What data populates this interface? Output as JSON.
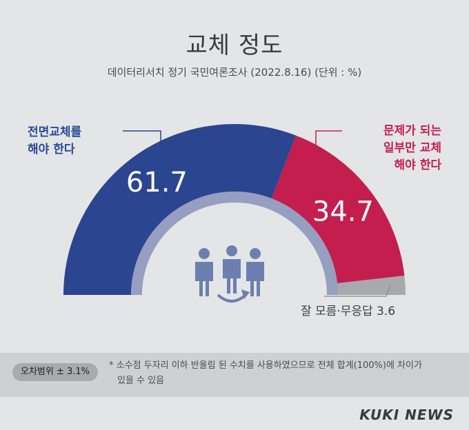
{
  "header": {
    "title": "교체 정도",
    "subtitle": "데이터리서치 정기 국민여론조사 (2022.8.16)  (단위 : %)"
  },
  "labels": {
    "full": [
      "전면교체를",
      "해야 한다"
    ],
    "partial": [
      "문제가 되는",
      "일부만 교체",
      "해야 한다"
    ],
    "unknown": "잘 모름·무응답 3.6"
  },
  "footer": {
    "margin_of_error": "오차범위 ± 3.1%",
    "note_line1": "* 소수점 두자리 이하 반올림 된 수치를 사용하였으므로 전체 합계(100%)에 차이가",
    "note_line2": "있을 수 있음",
    "brand": "KUKI NEWS"
  },
  "colors": {
    "full": "#2b4591",
    "partial": "#c31e4e",
    "unknown": "#a8a9ac",
    "inner_ring": "#8d96bd",
    "figure": "#6d7fb0"
  },
  "chart_data": {
    "type": "pie",
    "shape": "half-donut",
    "title": "교체 정도",
    "slices": [
      {
        "label": "전면교체를 해야 한다",
        "value": 61.7
      },
      {
        "label": "문제가 되는 일부만 교체 해야 한다",
        "value": 34.7
      },
      {
        "label": "잘 모름·무응답",
        "value": 3.6
      }
    ],
    "unit": "%"
  }
}
